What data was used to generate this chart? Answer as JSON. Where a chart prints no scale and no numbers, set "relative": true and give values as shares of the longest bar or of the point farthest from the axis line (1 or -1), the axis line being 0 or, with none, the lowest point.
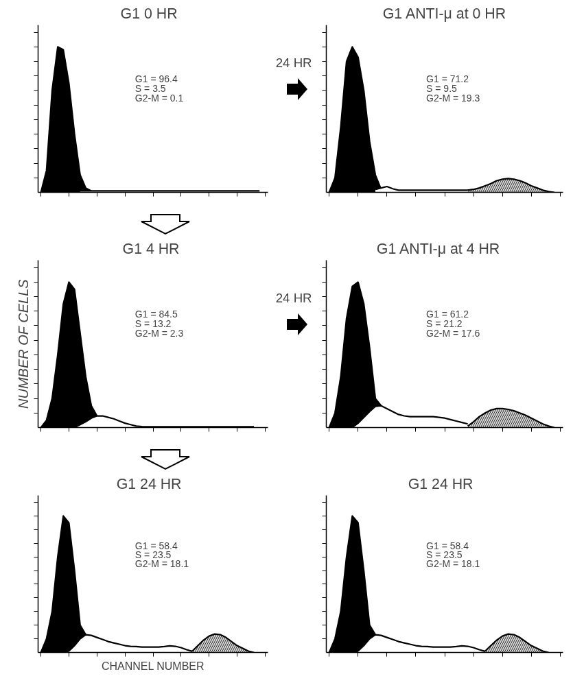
{
  "chart_data": [
    {
      "type": "area",
      "relative": true,
      "title": "G1   0 HR",
      "tick_labels": false,
      "categories": [
        null,
        null,
        null,
        null,
        null,
        null,
        null,
        null,
        null,
        null,
        null,
        null,
        null,
        null,
        null,
        null,
        null,
        null,
        null,
        null,
        null,
        null,
        null,
        null,
        null,
        null,
        null,
        null,
        null,
        null,
        null,
        null,
        null,
        null,
        null,
        null,
        null,
        null,
        null,
        null
      ],
      "annotations": [
        "G1      = 96.4",
        "S        =   3.5",
        "G2-M =   0.1",
        "24 HR"
      ],
      "series": [
        {
          "color": "#000000",
          "values": [
            0,
            0.15,
            0.7,
            1.0,
            0.98,
            0.75,
            0.4,
            0.12,
            0.03,
            0.01,
            null,
            null,
            null,
            null,
            null,
            null,
            null,
            null,
            null,
            null,
            null,
            null,
            null,
            null,
            null,
            null,
            null,
            null,
            null,
            null,
            null,
            null,
            null,
            null,
            null,
            null,
            null,
            null,
            null,
            null
          ]
        },
        {
          "color": "#ffffff",
          "values": [
            null,
            null,
            null,
            null,
            null,
            null,
            null,
            0.01,
            0.01,
            0.01,
            0.01,
            0.01,
            0.01,
            0.01,
            0.01,
            0.01,
            0.01,
            0.01,
            0.01,
            0.01,
            0.01,
            0.01,
            0.01,
            0.01,
            0.01,
            0.01,
            0.01,
            0.01,
            0.01,
            0.01,
            0.01,
            0.01,
            0.01,
            0.01,
            0.01,
            0.01,
            0.01,
            0.01,
            0.01,
            0.01
          ]
        }
      ]
    },
    {
      "type": "area",
      "relative": true,
      "title": "G1 ANTI-μ at 0 HR",
      "tick_labels": false,
      "categories": [
        null,
        null,
        null,
        null,
        null,
        null,
        null,
        null,
        null,
        null,
        null,
        null,
        null,
        null,
        null,
        null,
        null,
        null,
        null,
        null,
        null,
        null,
        null,
        null,
        null,
        null,
        null,
        null,
        null,
        null,
        null,
        null,
        null,
        null,
        null,
        null,
        null,
        null,
        null,
        null
      ],
      "annotations": [
        "G1      = 71.2",
        "S        =   9.5",
        "G2-M = 19.3"
      ],
      "series": [
        {
          "color": "#000000",
          "values": [
            0,
            0.1,
            0.45,
            0.9,
            1.0,
            0.93,
            0.7,
            0.35,
            0.12,
            0.02,
            null,
            null,
            null,
            null,
            null,
            null,
            null,
            null,
            null,
            null,
            null,
            null,
            null,
            null,
            null,
            null,
            null,
            null,
            null,
            null,
            null,
            null,
            null,
            null,
            null,
            null,
            null,
            null,
            null,
            null
          ]
        },
        {
          "color": "#ffffff",
          "values": [
            null,
            null,
            null,
            null,
            null,
            null,
            null,
            null,
            0.02,
            0.03,
            0.04,
            0.025,
            0.015,
            0.015,
            0.015,
            0.015,
            0.015,
            0.015,
            0.015,
            0.015,
            0.015,
            0.015,
            0.015,
            0.015,
            0.015,
            0.02,
            null,
            null,
            null,
            null,
            null,
            null,
            null,
            null,
            null,
            null,
            null,
            null,
            null,
            null
          ]
        },
        {
          "color": "#d9d9d9",
          "values": [
            null,
            null,
            null,
            null,
            null,
            null,
            null,
            null,
            null,
            null,
            null,
            null,
            null,
            null,
            null,
            null,
            null,
            null,
            null,
            null,
            null,
            null,
            null,
            null,
            0.015,
            0.02,
            0.03,
            0.045,
            0.06,
            0.08,
            0.09,
            0.095,
            0.09,
            0.08,
            0.065,
            0.045,
            0.03,
            0.015,
            0.005,
            0
          ]
        }
      ]
    },
    {
      "type": "area",
      "relative": true,
      "title": "G1  4 HR",
      "tick_labels": false,
      "ylabel": "NUMBER OF CELLS",
      "categories": [
        null,
        null,
        null,
        null,
        null,
        null,
        null,
        null,
        null,
        null,
        null,
        null,
        null,
        null,
        null,
        null,
        null,
        null,
        null,
        null,
        null,
        null,
        null,
        null,
        null,
        null,
        null,
        null,
        null,
        null,
        null,
        null,
        null,
        null,
        null,
        null,
        null,
        null,
        null,
        null
      ],
      "annotations": [
        "G1      = 84.5",
        "S        = 13.2",
        "G2-M =   2.3",
        "24 HR"
      ],
      "series": [
        {
          "color": "#000000",
          "values": [
            0,
            0.05,
            0.2,
            0.5,
            0.85,
            1.0,
            0.95,
            0.65,
            0.35,
            0.15,
            0.08,
            null,
            null,
            null,
            null,
            null,
            null,
            null,
            null,
            null,
            null,
            null,
            null,
            null,
            null,
            null,
            null,
            null,
            null,
            null,
            null,
            null,
            null,
            null,
            null,
            null,
            null,
            null,
            null,
            null
          ]
        },
        {
          "color": "#ffffff",
          "values": [
            null,
            null,
            null,
            null,
            null,
            null,
            0,
            0.02,
            0.04,
            0.065,
            0.08,
            0.08,
            0.07,
            0.06,
            0.045,
            0.03,
            0.02,
            0.01,
            0.007,
            0.005,
            0.005,
            0.005,
            0.005,
            0.005,
            0.005,
            0.005,
            0.005,
            0.005,
            0.005,
            0.005,
            0.005,
            0.005,
            0.005,
            0.005,
            0.005,
            0.005,
            0.005,
            0.005,
            0.005,
            null
          ]
        }
      ]
    },
    {
      "type": "area",
      "relative": true,
      "title": "G1  ANTI-μ  at  4 HR",
      "tick_labels": false,
      "categories": [
        null,
        null,
        null,
        null,
        null,
        null,
        null,
        null,
        null,
        null,
        null,
        null,
        null,
        null,
        null,
        null,
        null,
        null,
        null,
        null,
        null,
        null,
        null,
        null,
        null,
        null,
        null,
        null,
        null,
        null,
        null,
        null,
        null,
        null,
        null,
        null,
        null,
        null,
        null,
        null
      ],
      "annotations": [
        "G1      = 61.2",
        "S        = 21.2",
        "G2-M = 17.6"
      ],
      "series": [
        {
          "color": "#000000",
          "values": [
            0,
            0.1,
            0.35,
            0.75,
            0.97,
            1.0,
            0.85,
            0.55,
            0.2,
            0.15,
            null,
            null,
            null,
            null,
            null,
            null,
            null,
            null,
            null,
            null,
            null,
            null,
            null,
            null,
            null,
            null,
            null,
            null,
            null,
            null,
            null,
            null,
            null,
            null,
            null,
            null,
            null,
            null,
            null,
            null
          ]
        },
        {
          "color": "#ffffff",
          "values": [
            null,
            null,
            null,
            null,
            0,
            0.03,
            0.07,
            0.11,
            0.145,
            0.15,
            0.13,
            0.11,
            0.09,
            0.08,
            0.075,
            0.075,
            0.075,
            0.075,
            0.075,
            0.07,
            0.065,
            0.055,
            0.045,
            0.035,
            0.025,
            null,
            null,
            null,
            null,
            null,
            null,
            null,
            null,
            null,
            null,
            null,
            null,
            null,
            null,
            null
          ]
        },
        {
          "color": "#d9d9d9",
          "values": [
            null,
            null,
            null,
            null,
            null,
            null,
            null,
            null,
            null,
            null,
            null,
            null,
            null,
            null,
            null,
            null,
            null,
            null,
            null,
            null,
            null,
            null,
            null,
            null,
            0.01,
            0.04,
            0.075,
            0.1,
            0.12,
            0.13,
            0.13,
            0.125,
            0.115,
            0.1,
            0.085,
            0.065,
            0.045,
            0.025,
            0.01,
            0
          ]
        }
      ]
    },
    {
      "type": "area",
      "relative": true,
      "title": "G1   24 HR",
      "tick_labels": false,
      "xlabel": "CHANNEL NUMBER",
      "categories": [
        null,
        null,
        null,
        null,
        null,
        null,
        null,
        null,
        null,
        null,
        null,
        null,
        null,
        null,
        null,
        null,
        null,
        null,
        null,
        null,
        null,
        null,
        null,
        null,
        null,
        null,
        null,
        null,
        null,
        null,
        null,
        null,
        null,
        null,
        null,
        null,
        null,
        null,
        null,
        null
      ],
      "annotations": [
        "G1      = 58.4",
        "S        = 23.5",
        "G2-M = 18.1"
      ],
      "series": [
        {
          "color": "#000000",
          "values": [
            0,
            0.1,
            0.3,
            0.7,
            1.0,
            0.95,
            0.6,
            0.2,
            0.13,
            null,
            null,
            null,
            null,
            null,
            null,
            null,
            null,
            null,
            null,
            null,
            null,
            null,
            null,
            null,
            null,
            null,
            null,
            null,
            null,
            null,
            null,
            null,
            null,
            null,
            null,
            null,
            null,
            null,
            null,
            null
          ]
        },
        {
          "color": "#ffffff",
          "values": [
            null,
            null,
            null,
            null,
            null,
            0.01,
            0.05,
            0.1,
            0.13,
            0.125,
            0.11,
            0.095,
            0.08,
            0.07,
            0.06,
            0.05,
            0.045,
            0.043,
            0.04,
            0.04,
            0.04,
            0.04,
            0.043,
            0.048,
            0.045,
            0.035,
            0.02,
            0.008,
            0,
            null,
            null,
            null,
            null,
            null,
            null,
            null,
            null,
            null,
            null,
            null
          ]
        },
        {
          "color": "#d9d9d9",
          "values": [
            null,
            null,
            null,
            null,
            null,
            null,
            null,
            null,
            null,
            null,
            null,
            null,
            null,
            null,
            null,
            null,
            null,
            null,
            null,
            null,
            null,
            null,
            null,
            null,
            null,
            null,
            null,
            0.01,
            0.05,
            0.09,
            0.12,
            0.135,
            0.13,
            0.11,
            0.08,
            0.05,
            0.03,
            0.01,
            0,
            null
          ]
        }
      ]
    },
    {
      "type": "area",
      "relative": true,
      "title": "G1   24 HR",
      "tick_labels": false,
      "categories": [
        null,
        null,
        null,
        null,
        null,
        null,
        null,
        null,
        null,
        null,
        null,
        null,
        null,
        null,
        null,
        null,
        null,
        null,
        null,
        null,
        null,
        null,
        null,
        null,
        null,
        null,
        null,
        null,
        null,
        null,
        null,
        null,
        null,
        null,
        null,
        null,
        null,
        null,
        null,
        null
      ],
      "annotations": [
        "G1      = 58.4",
        "S        = 23.5",
        "G2-M = 18.1"
      ],
      "series": [
        {
          "color": "#000000",
          "values": [
            0,
            0.1,
            0.3,
            0.7,
            1.0,
            0.95,
            0.6,
            0.2,
            0.13,
            null,
            null,
            null,
            null,
            null,
            null,
            null,
            null,
            null,
            null,
            null,
            null,
            null,
            null,
            null,
            null,
            null,
            null,
            null,
            null,
            null,
            null,
            null,
            null,
            null,
            null,
            null,
            null,
            null,
            null,
            null
          ]
        },
        {
          "color": "#ffffff",
          "values": [
            null,
            null,
            null,
            null,
            null,
            0.01,
            0.05,
            0.1,
            0.13,
            0.125,
            0.11,
            0.095,
            0.08,
            0.07,
            0.06,
            0.05,
            0.045,
            0.043,
            0.04,
            0.04,
            0.04,
            0.04,
            0.043,
            0.048,
            0.045,
            0.035,
            0.02,
            0.008,
            0,
            null,
            null,
            null,
            null,
            null,
            null,
            null,
            null,
            null,
            null,
            null
          ]
        },
        {
          "color": "#d9d9d9",
          "values": [
            null,
            null,
            null,
            null,
            null,
            null,
            null,
            null,
            null,
            null,
            null,
            null,
            null,
            null,
            null,
            null,
            null,
            null,
            null,
            null,
            null,
            null,
            null,
            null,
            null,
            null,
            null,
            0.01,
            0.05,
            0.09,
            0.12,
            0.135,
            0.13,
            0.11,
            0.08,
            0.05,
            0.03,
            0.01,
            0,
            null
          ]
        }
      ]
    }
  ]
}
